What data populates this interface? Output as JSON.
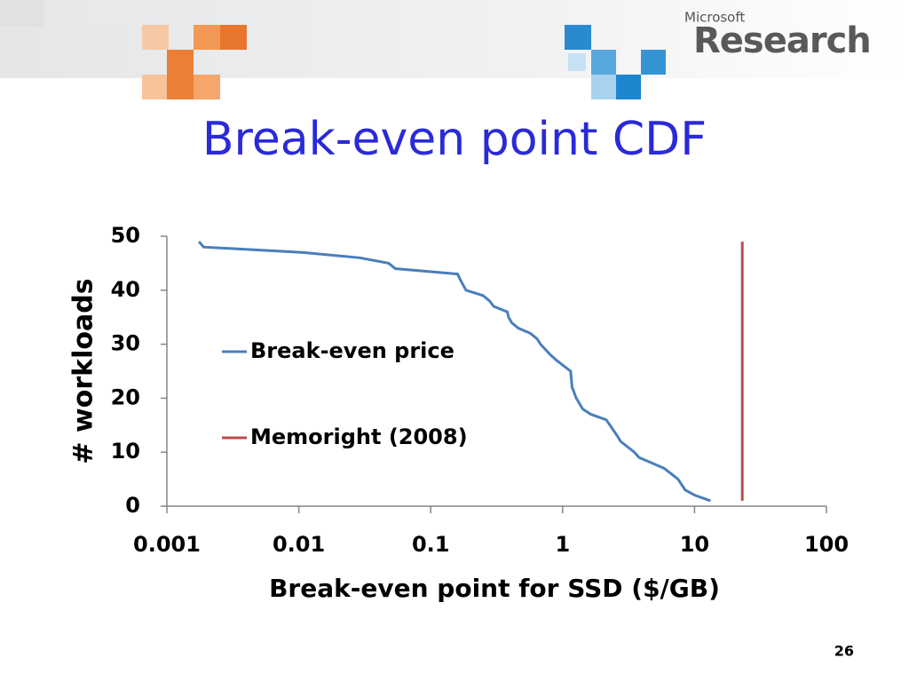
{
  "header": {
    "logo_small": "Microsoft",
    "logo_large": "Research"
  },
  "slide_number": 26,
  "chart_data": {
    "type": "line",
    "title": "Break-even point CDF",
    "x_label": "Break-even point for SSD ($/GB)",
    "y_label": "# workloads",
    "xscale": "log",
    "xlim": [
      0.001,
      100
    ],
    "xticks": [
      0.001,
      0.01,
      0.1,
      1,
      10,
      100
    ],
    "ylim": [
      0,
      50
    ],
    "yticks": [
      0,
      10,
      20,
      30,
      40,
      50
    ],
    "grid": false,
    "legend": "left",
    "series": [
      {
        "name": "Break-even price",
        "color": "#4a7ebb",
        "x": [
          0.00175,
          0.0019,
          0.0106,
          0.029,
          0.048,
          0.054,
          0.16,
          0.167,
          0.185,
          0.25,
          0.28,
          0.3,
          0.38,
          0.39,
          0.41,
          0.46,
          0.57,
          0.64,
          0.68,
          0.81,
          0.9,
          1.15,
          1.18,
          1.27,
          1.42,
          1.64,
          2.14,
          2.6,
          2.75,
          3.5,
          3.8,
          5.9,
          7.5,
          8.5,
          10.1,
          13.2
        ],
        "values": [
          49,
          48,
          47,
          46,
          45,
          44,
          43,
          42,
          40,
          39,
          38,
          37,
          36,
          35,
          34,
          33,
          32,
          31,
          30,
          28,
          27,
          25,
          22,
          20,
          18,
          17,
          16,
          13,
          12,
          10,
          9,
          7,
          5,
          3,
          2,
          1
        ]
      },
      {
        "name": "Memoright (2008)",
        "color": "#be4b48",
        "x": [
          23,
          23
        ],
        "values": [
          1,
          49
        ]
      }
    ]
  }
}
